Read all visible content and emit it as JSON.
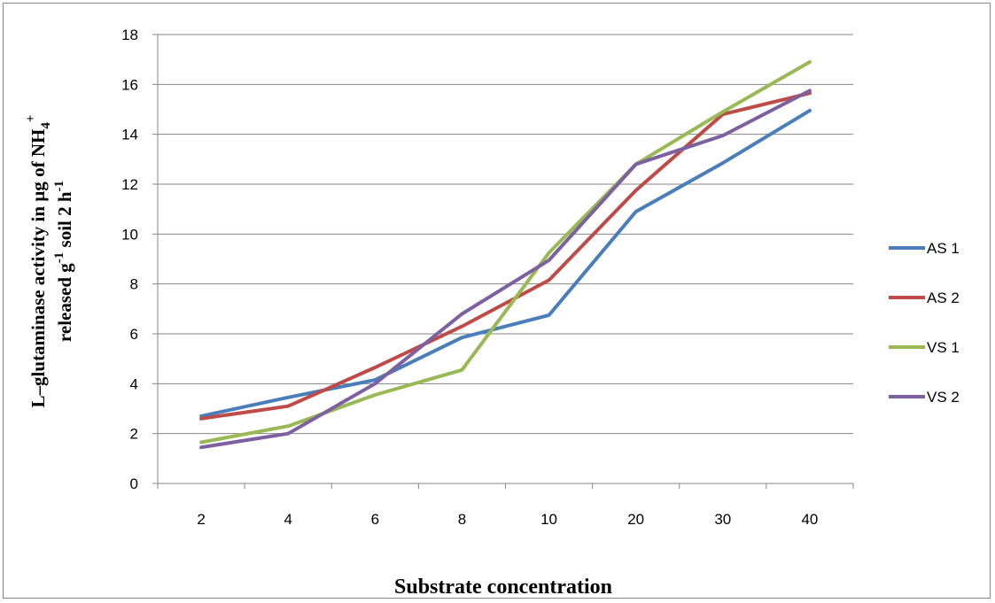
{
  "chart_data": {
    "type": "line",
    "categories": [
      "2",
      "4",
      "6",
      "8",
      "10",
      "20",
      "30",
      "40"
    ],
    "ylim": [
      0,
      18
    ],
    "yticks": [
      "0",
      "2",
      "4",
      "6",
      "8",
      "10",
      "12",
      "14",
      "16",
      "18"
    ],
    "xlabel": "Substrate concentration",
    "ylabel": {
      "line1": "L–glutaminase activity in µg of NH",
      "line1_sub": "4",
      "line1_sup": "+",
      "line2_a": "released g",
      "line2_sup1": "-1",
      "line2_b": " soil 2 h",
      "line2_sup2": "-1"
    },
    "grid": "horizontal",
    "legend_position": "right",
    "series": [
      {
        "name": "AS 1",
        "color": "#4a7ebb",
        "values": [
          2.7,
          3.45,
          4.15,
          5.85,
          6.75,
          10.9,
          12.85,
          14.95
        ]
      },
      {
        "name": "AS 2",
        "color": "#be4b48",
        "values": [
          2.6,
          3.1,
          4.65,
          6.3,
          8.15,
          11.75,
          14.8,
          15.65
        ]
      },
      {
        "name": "VS 1",
        "color": "#98b954",
        "values": [
          1.65,
          2.3,
          3.55,
          4.55,
          9.25,
          12.8,
          14.9,
          16.9
        ]
      },
      {
        "name": "VS 2",
        "color": "#7d60a0",
        "values": [
          1.45,
          2.0,
          4.0,
          6.8,
          8.95,
          12.8,
          13.95,
          15.75
        ]
      }
    ]
  }
}
